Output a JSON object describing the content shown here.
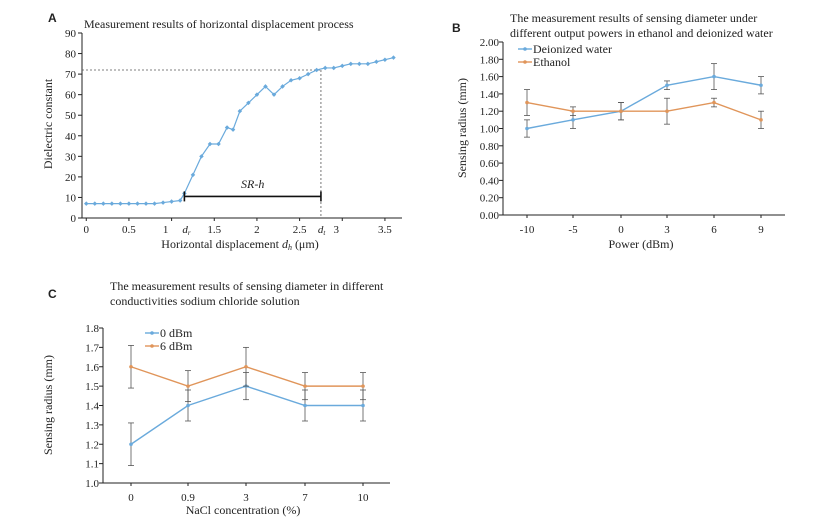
{
  "chart_data": [
    {
      "panel": "A",
      "type": "scatter",
      "title": "Measurement results of horizontal displacement process",
      "xlabel": "Horizontal displacement dₕ (μm)",
      "ylabel": "Dielectric constant",
      "xlim": [
        -0.05,
        3.7
      ],
      "ylim": [
        0,
        90
      ],
      "xticks": [
        "0",
        "0.5",
        "1",
        "1.5",
        "2",
        "2.5",
        "3",
        "3.5"
      ],
      "xtick_values": [
        0,
        0.5,
        1,
        1.5,
        2,
        2.5,
        3,
        3.5
      ],
      "yticks": [
        "0",
        "10",
        "20",
        "30",
        "40",
        "50",
        "60",
        "70",
        "80",
        "90"
      ],
      "ytick_values": [
        0,
        10,
        20,
        30,
        40,
        50,
        60,
        70,
        80,
        90
      ],
      "x": [
        0,
        0.1,
        0.2,
        0.3,
        0.4,
        0.5,
        0.6,
        0.7,
        0.8,
        0.9,
        1.0,
        1.1,
        1.15,
        1.25,
        1.35,
        1.45,
        1.55,
        1.65,
        1.72,
        1.8,
        1.9,
        2.0,
        2.1,
        2.2,
        2.3,
        2.4,
        2.5,
        2.6,
        2.7,
        2.8,
        2.9,
        3.0,
        3.1,
        3.2,
        3.3,
        3.4,
        3.5,
        3.6
      ],
      "y": [
        7,
        7,
        7,
        7,
        7,
        7,
        7,
        7,
        7,
        7.5,
        8,
        8.5,
        12,
        21,
        30,
        36,
        36,
        44,
        43,
        52,
        56,
        60,
        64,
        60,
        64,
        67,
        68,
        70,
        72,
        73,
        73,
        74,
        75,
        75,
        75,
        76,
        77,
        78
      ],
      "threshold_y": 72,
      "d1_x": 1.15,
      "d2_x": 2.75,
      "d1_label": "d",
      "d1_sub": "r",
      "d2_label": "d",
      "d2_sub": "t",
      "annotation": "SR-h",
      "color": "#6aaadc"
    },
    {
      "panel": "B",
      "type": "line",
      "title_lines": [
        "The measurement results of sensing diameter under",
        "different output powers in ethanol and deionized water"
      ],
      "xlabel": "Power (dBm)",
      "ylabel": "Sensing radius (mm)",
      "categories": [
        "-10",
        "-5",
        "0",
        "3",
        "6",
        "9"
      ],
      "ylim": [
        0,
        2.0
      ],
      "yticks": [
        "0.00",
        "0.20",
        "0.40",
        "0.60",
        "0.80",
        "1.00",
        "1.20",
        "1.40",
        "1.60",
        "1.80",
        "2.00"
      ],
      "ytick_values": [
        0,
        0.2,
        0.4,
        0.6,
        0.8,
        1.0,
        1.2,
        1.4,
        1.6,
        1.8,
        2.0
      ],
      "legend_position": "top-left",
      "series": [
        {
          "name": "Deionized water",
          "values": [
            1.0,
            1.1,
            1.2,
            1.5,
            1.6,
            1.5
          ],
          "errors": [
            0.1,
            0.1,
            0.1,
            0.05,
            0.15,
            0.1
          ],
          "color": "#6aaadc"
        },
        {
          "name": "Ethanol",
          "values": [
            1.3,
            1.2,
            1.2,
            1.2,
            1.3,
            1.1
          ],
          "errors": [
            0.15,
            0.05,
            0.1,
            0.15,
            0.05,
            0.1
          ],
          "color": "#e0955a"
        }
      ]
    },
    {
      "panel": "C",
      "type": "line",
      "title_lines": [
        "The measurement results of sensing diameter in different",
        "conductivities sodium chloride solution"
      ],
      "xlabel": "NaCl concentration (%)",
      "ylabel": "Sensing radius (mm)",
      "categories": [
        "0",
        "0.9",
        "3",
        "7",
        "10"
      ],
      "ylim": [
        1.0,
        1.8
      ],
      "yticks": [
        "1.0",
        "1.1",
        "1.2",
        "1.3",
        "1.4",
        "1.5",
        "1.6",
        "1.7",
        "1.8"
      ],
      "ytick_values": [
        1.0,
        1.1,
        1.2,
        1.3,
        1.4,
        1.5,
        1.6,
        1.7,
        1.8
      ],
      "legend_position": "top-left",
      "series": [
        {
          "name": "0 dBm",
          "values": [
            1.2,
            1.4,
            1.5,
            1.4,
            1.4
          ],
          "errors": [
            0.11,
            0.08,
            0.07,
            0.08,
            0.08
          ],
          "color": "#6aaadc"
        },
        {
          "name": "6 dBm",
          "values": [
            1.6,
            1.5,
            1.6,
            1.5,
            1.5
          ],
          "errors": [
            0.11,
            0.08,
            0.1,
            0.07,
            0.07
          ],
          "color": "#e0955a"
        }
      ]
    }
  ]
}
